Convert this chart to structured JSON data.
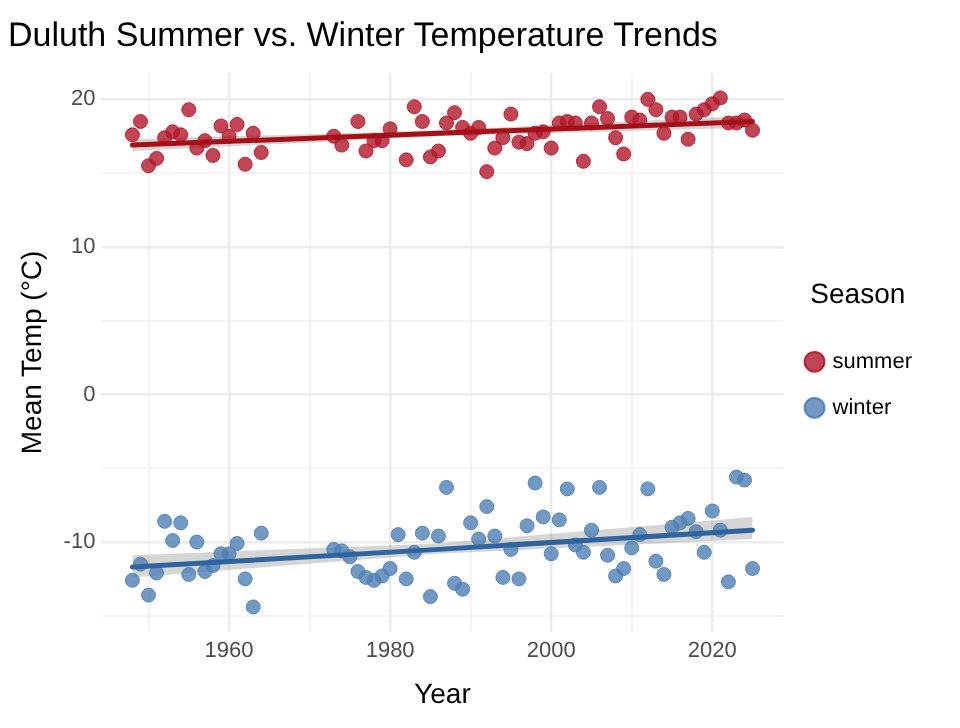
{
  "chart_data": {
    "type": "scatter",
    "title": "Duluth Summer vs. Winter Temperature Trends",
    "xlabel": "Year",
    "ylabel": "Mean Temp (°C)",
    "legend_title": "Season",
    "legend": "right",
    "grid": true,
    "xlim": [
      1944.15,
      2028.85
    ],
    "xticks": [
      {
        "value": 1950,
        "label": null
      },
      1960,
      {
        "value": 1970,
        "label": null
      },
      1980,
      {
        "value": 1990,
        "label": null
      },
      2000,
      {
        "value": 2010,
        "label": null
      },
      2020
    ],
    "ylim": [
      -16.1,
      21.8
    ],
    "yticks": [
      {
        "value": -15,
        "label": null
      },
      -10,
      {
        "value": -5,
        "label": null
      },
      0,
      {
        "value": 5,
        "label": null
      },
      10,
      {
        "value": 15,
        "label": null
      },
      20
    ],
    "series": [
      {
        "name": "summer",
        "marker": "circle",
        "color": "#b2182b",
        "x": [
          1948,
          1949,
          1950,
          1951,
          1952,
          1953,
          1954,
          1955,
          1956,
          1957,
          1958,
          1959,
          1960,
          1961,
          1962,
          1963,
          1964,
          1973,
          1974,
          1976,
          1977,
          1978,
          1979,
          1980,
          1982,
          1983,
          1984,
          1985,
          1986,
          1987,
          1988,
          1989,
          1990,
          1991,
          1992,
          1993,
          1994,
          1995,
          1996,
          1997,
          1998,
          1999,
          2000,
          2001,
          2002,
          2003,
          2004,
          2005,
          2006,
          2007,
          2008,
          2009,
          2010,
          2011,
          2012,
          2013,
          2014,
          2015,
          2016,
          2017,
          2018,
          2019,
          2020,
          2021,
          2022,
          2023,
          2024,
          2025
        ],
        "values": [
          17.6,
          18.5,
          15.5,
          16.0,
          17.4,
          17.8,
          17.6,
          19.3,
          16.7,
          17.2,
          16.2,
          18.2,
          17.5,
          18.3,
          15.6,
          17.7,
          16.4,
          17.5,
          16.9,
          18.5,
          16.5,
          17.2,
          17.2,
          18.0,
          15.9,
          19.5,
          18.5,
          16.1,
          16.5,
          18.4,
          19.1,
          18.1,
          17.7,
          18.1,
          15.1,
          16.7,
          17.4,
          19.0,
          17.1,
          17.0,
          17.7,
          17.8,
          16.7,
          18.4,
          18.5,
          18.4,
          15.8,
          18.4,
          19.5,
          18.7,
          17.4,
          16.3,
          18.8,
          18.6,
          20.0,
          19.3,
          17.7,
          18.8,
          18.8,
          17.3,
          19.0,
          19.3,
          19.7,
          20.1,
          18.4,
          18.4,
          18.6,
          17.9
        ]
      },
      {
        "name": "winter",
        "marker": "circle",
        "color": "#4f7fb5",
        "x": [
          1948,
          1949,
          1950,
          1951,
          1952,
          1953,
          1954,
          1955,
          1956,
          1957,
          1958,
          1959,
          1960,
          1961,
          1962,
          1963,
          1964,
          1973,
          1974,
          1975,
          1976,
          1977,
          1978,
          1979,
          1980,
          1981,
          1982,
          1983,
          1984,
          1985,
          1986,
          1987,
          1988,
          1989,
          1990,
          1991,
          1992,
          1993,
          1994,
          1995,
          1996,
          1997,
          1998,
          1999,
          2000,
          2001,
          2002,
          2003,
          2004,
          2005,
          2006,
          2007,
          2008,
          2009,
          2010,
          2011,
          2012,
          2013,
          2014,
          2015,
          2016,
          2017,
          2018,
          2019,
          2020,
          2021,
          2022,
          2023,
          2024,
          2025
        ],
        "values": [
          -12.6,
          -11.5,
          -13.6,
          -12.1,
          -8.6,
          -9.9,
          -8.7,
          -12.2,
          -10.0,
          -12.0,
          -11.6,
          -10.8,
          -10.8,
          -10.1,
          -12.5,
          -14.4,
          -9.4,
          -10.5,
          -10.6,
          -11.0,
          -12.0,
          -12.4,
          -12.6,
          -12.3,
          -11.8,
          -9.5,
          -12.5,
          -10.7,
          -9.4,
          -13.7,
          -9.6,
          -6.3,
          -12.8,
          -13.2,
          -8.7,
          -9.8,
          -7.6,
          -9.6,
          -12.4,
          -10.5,
          -12.5,
          -8.9,
          -6.0,
          -8.3,
          -10.8,
          -8.5,
          -6.4,
          -10.2,
          -10.7,
          -9.2,
          -6.3,
          -10.9,
          -12.3,
          -11.8,
          -10.4,
          -9.5,
          -6.4,
          -11.3,
          -12.2,
          -9.0,
          -8.7,
          -8.4,
          -9.3,
          -10.7,
          -7.9,
          -9.2,
          -12.7,
          -5.6,
          -5.8,
          -11.8
        ]
      },
      {
        "type": "line",
        "marker": "none",
        "color": "#a50f15",
        "x": [
          1948,
          1986,
          2025
        ],
        "values": [
          16.9,
          17.7,
          18.5
        ],
        "lower": [
          16.5,
          17.5,
          18.1
        ],
        "upper": [
          17.3,
          17.9,
          18.9
        ]
      },
      {
        "type": "line",
        "marker": "none",
        "color": "#2f64a0",
        "x": [
          1948,
          1986,
          2025
        ],
        "values": [
          -11.7,
          -10.5,
          -9.2
        ],
        "lower": [
          -12.4,
          -10.8,
          -9.8
        ],
        "upper": [
          -10.9,
          -10.1,
          -8.3
        ]
      }
    ]
  }
}
